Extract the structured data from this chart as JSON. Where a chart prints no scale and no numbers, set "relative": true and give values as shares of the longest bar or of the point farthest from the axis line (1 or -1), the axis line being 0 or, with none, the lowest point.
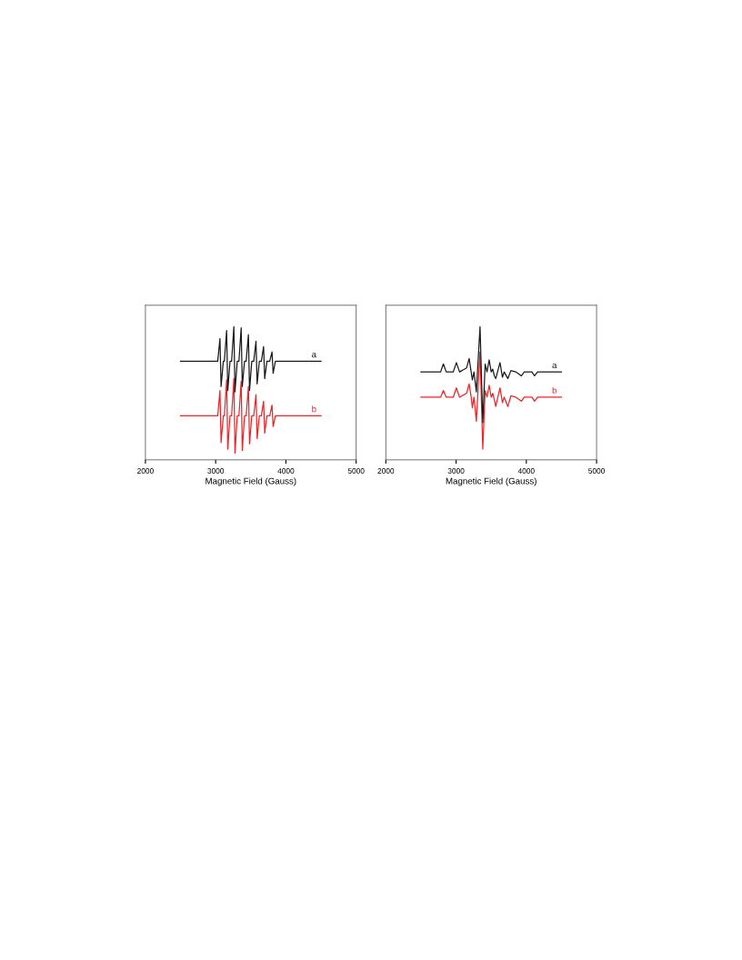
{
  "chart_data": [
    {
      "type": "line",
      "relative": true,
      "xlabel": "Magnetic Field (Gauss)",
      "xlim": [
        2000,
        5000
      ],
      "xticks": [
        2000,
        3000,
        4000,
        5000
      ],
      "grid": false,
      "legend": false,
      "series": [
        {
          "name": "a",
          "color": "#1a1a1a",
          "x": [
            2500,
            3029,
            3061,
            3077,
            3109,
            3124,
            3156,
            3172,
            3204,
            3227,
            3259,
            3275,
            3307,
            3331,
            3363,
            3379,
            3411,
            3434,
            3466,
            3482,
            3514,
            3542,
            3574,
            3590,
            3622,
            3650,
            3682,
            3698,
            3730,
            3770,
            3802,
            3818,
            3850,
            4500
          ],
          "values": [
            0.74,
            0.74,
            0.91,
            0.55,
            0.74,
            0.74,
            0.97,
            0.52,
            0.74,
            0.74,
            1.0,
            0.51,
            0.74,
            0.74,
            0.99,
            0.55,
            0.74,
            0.74,
            0.94,
            0.52,
            0.74,
            0.74,
            0.89,
            0.57,
            0.74,
            0.74,
            0.85,
            0.61,
            0.74,
            0.74,
            0.81,
            0.65,
            0.74,
            0.74
          ]
        },
        {
          "name": "b",
          "color": "#e8262a",
          "x": [
            2500,
            3029,
            3061,
            3077,
            3109,
            3124,
            3156,
            3172,
            3204,
            3227,
            3259,
            3275,
            3307,
            3331,
            3363,
            3379,
            3411,
            3434,
            3466,
            3482,
            3514,
            3542,
            3574,
            3590,
            3622,
            3650,
            3682,
            3698,
            3730,
            3770,
            3802,
            3818,
            3850,
            4500
          ],
          "values": [
            0.33,
            0.33,
            0.52,
            0.13,
            0.33,
            0.33,
            0.6,
            0.08,
            0.33,
            0.33,
            0.61,
            0.05,
            0.33,
            0.33,
            0.59,
            0.07,
            0.33,
            0.33,
            0.55,
            0.12,
            0.33,
            0.33,
            0.49,
            0.16,
            0.33,
            0.33,
            0.44,
            0.2,
            0.33,
            0.33,
            0.41,
            0.25,
            0.33,
            0.33
          ]
        }
      ]
    },
    {
      "type": "line",
      "relative": true,
      "xlabel": "Magnetic Field (Gauss)",
      "xlim": [
        2000,
        5000
      ],
      "xticks": [
        2000,
        3000,
        4000,
        5000
      ],
      "grid": false,
      "legend": false,
      "series": [
        {
          "name": "a",
          "color": "#1a1a1a",
          "x": [
            2500,
            2780,
            2819,
            2860,
            2960,
            3004,
            3050,
            3150,
            3186,
            3215,
            3232,
            3255,
            3289,
            3341,
            3380,
            3414,
            3440,
            3471,
            3500,
            3522,
            3545,
            3565,
            3625,
            3660,
            3685,
            3737,
            3780,
            3850,
            3930,
            3970,
            4080,
            4117,
            4160,
            4500
          ],
          "values": [
            0.66,
            0.66,
            0.72,
            0.66,
            0.66,
            0.73,
            0.66,
            0.69,
            0.76,
            0.66,
            0.6,
            0.66,
            0.51,
            1.0,
            0.28,
            0.72,
            0.66,
            0.75,
            0.66,
            0.68,
            0.63,
            0.61,
            0.73,
            0.62,
            0.66,
            0.61,
            0.67,
            0.66,
            0.63,
            0.66,
            0.66,
            0.63,
            0.66,
            0.66
          ]
        },
        {
          "name": "b",
          "color": "#e8262a",
          "x": [
            2500,
            2780,
            2819,
            2860,
            2960,
            3004,
            3050,
            3150,
            3186,
            3215,
            3232,
            3255,
            3289,
            3341,
            3380,
            3414,
            3440,
            3471,
            3500,
            3522,
            3545,
            3565,
            3625,
            3660,
            3685,
            3737,
            3780,
            3850,
            3930,
            3970,
            4080,
            4117,
            4160,
            4500
          ],
          "values": [
            0.47,
            0.47,
            0.52,
            0.47,
            0.47,
            0.54,
            0.47,
            0.5,
            0.57,
            0.47,
            0.39,
            0.47,
            0.29,
            0.81,
            0.08,
            0.52,
            0.47,
            0.56,
            0.47,
            0.5,
            0.45,
            0.4,
            0.54,
            0.43,
            0.47,
            0.4,
            0.48,
            0.47,
            0.44,
            0.47,
            0.47,
            0.44,
            0.47,
            0.47
          ]
        }
      ]
    }
  ]
}
